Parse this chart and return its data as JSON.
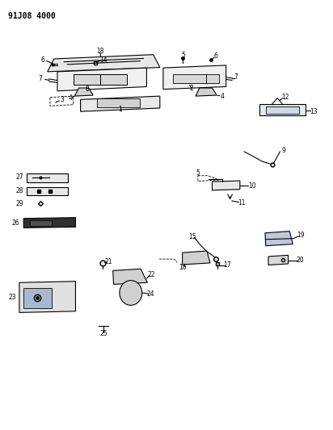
{
  "title": "91J08 4000",
  "bg_color": "#ffffff",
  "line_color": "#000000",
  "fig_width": 4.12,
  "fig_height": 5.33,
  "dpi": 100
}
